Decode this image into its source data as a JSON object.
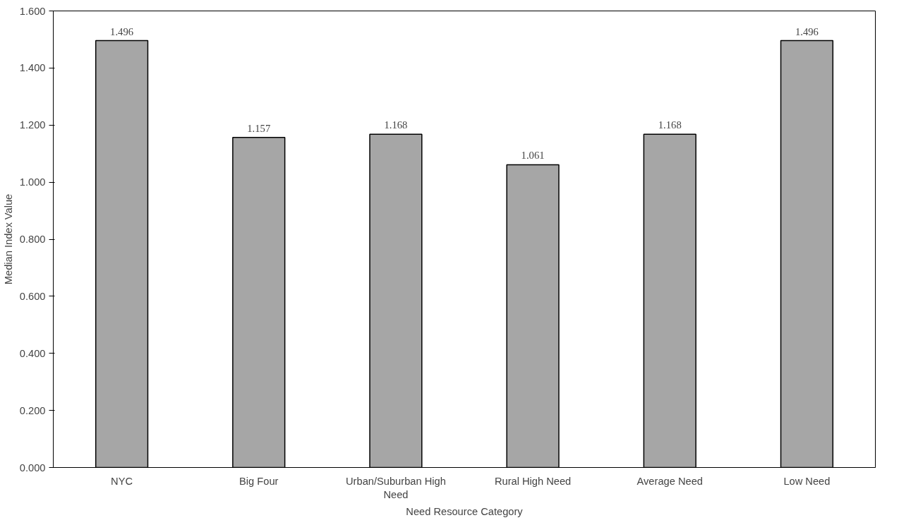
{
  "chart_data": {
    "type": "bar",
    "xlabel": "Need Resource Category",
    "ylabel": "Median Index Value",
    "categories": [
      "NYC",
      "Big Four",
      "Urban/Suburban High Need",
      "Rural High Need",
      "Average Need",
      "Low Need"
    ],
    "values": [
      1.496,
      1.157,
      1.168,
      1.061,
      1.168,
      1.496
    ],
    "color": "#a6a6a6",
    "ylim": [
      0,
      1.6
    ],
    "yticks": [
      {
        "value": 0,
        "label": "0.000"
      },
      {
        "value": 0.2,
        "label": "0.200"
      },
      {
        "value": 0.4,
        "label": "0.400"
      },
      {
        "value": 0.6,
        "label": "0.600"
      },
      {
        "value": 0.8,
        "label": "0.800"
      },
      {
        "value": 1.0,
        "label": "1.000"
      },
      {
        "value": 1.2,
        "label": "1.200"
      },
      {
        "value": 1.4,
        "label": "1.400"
      },
      {
        "value": 1.6,
        "label": "1.600"
      }
    ],
    "data_labels": true,
    "grid": false
  }
}
